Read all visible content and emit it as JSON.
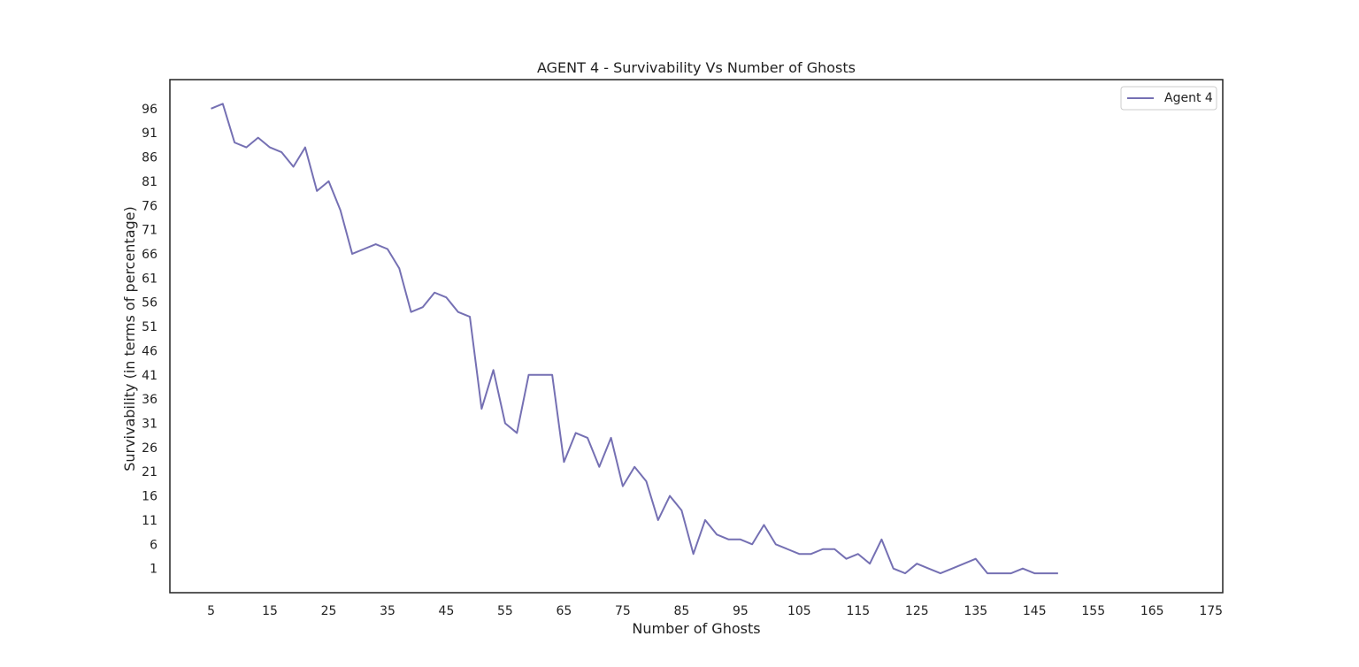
{
  "chart_data": {
    "type": "line",
    "title": "AGENT 4 - Survivability Vs Number of Ghosts",
    "xlabel": "Number of Ghosts",
    "ylabel": "Survivability (in terms of percentage)",
    "xlim": [
      -2,
      177
    ],
    "ylim": [
      -4,
      102
    ],
    "xticks": [
      5,
      15,
      25,
      35,
      45,
      55,
      65,
      75,
      85,
      95,
      105,
      115,
      125,
      135,
      145,
      155,
      165,
      175
    ],
    "yticks": [
      1,
      6,
      11,
      16,
      21,
      26,
      31,
      36,
      41,
      46,
      51,
      56,
      61,
      66,
      71,
      76,
      81,
      86,
      91,
      96
    ],
    "grid": false,
    "legend_position": "top-right",
    "line_color": "#7570b3",
    "series": [
      {
        "name": "Agent 4",
        "x": [
          5,
          7,
          9,
          11,
          13,
          15,
          17,
          19,
          21,
          23,
          25,
          27,
          29,
          31,
          33,
          35,
          37,
          39,
          41,
          43,
          45,
          47,
          49,
          51,
          53,
          55,
          57,
          59,
          61,
          63,
          65,
          67,
          69,
          71,
          73,
          75,
          77,
          79,
          81,
          83,
          85,
          87,
          89,
          91,
          93,
          95,
          97,
          99,
          101,
          103,
          105,
          107,
          109,
          111,
          113,
          115,
          117,
          119,
          121,
          123,
          125,
          127,
          129,
          131,
          133,
          135,
          137,
          139,
          141,
          143,
          145,
          147,
          149
        ],
        "values": [
          96,
          97,
          89,
          88,
          90,
          88,
          87,
          84,
          88,
          79,
          81,
          75,
          66,
          67,
          68,
          67,
          63,
          54,
          55,
          58,
          57,
          54,
          53,
          34,
          42,
          31,
          29,
          41,
          41,
          41,
          23,
          29,
          28,
          22,
          28,
          18,
          22,
          19,
          11,
          16,
          13,
          4,
          11,
          8,
          7,
          7,
          6,
          10,
          6,
          5,
          4,
          4,
          5,
          5,
          3,
          4,
          2,
          7,
          1,
          0,
          2,
          1,
          0,
          1,
          2,
          3,
          0,
          0,
          0,
          1,
          0,
          0,
          0
        ]
      }
    ]
  }
}
